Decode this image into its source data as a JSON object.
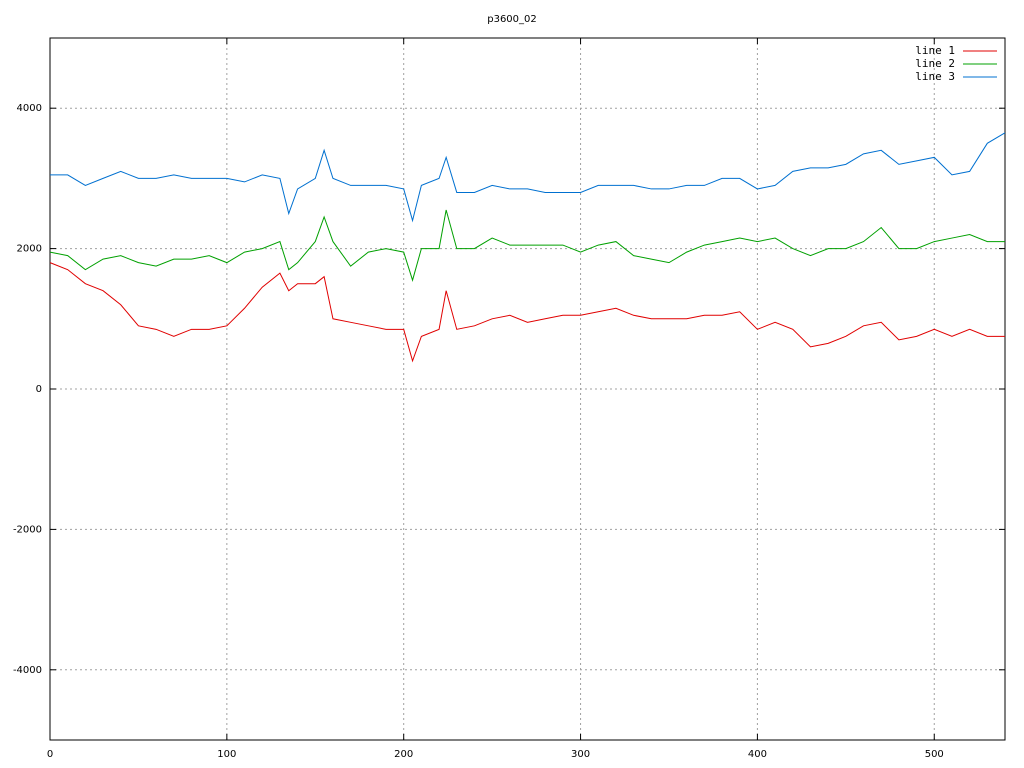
{
  "chart_data": {
    "type": "line",
    "title": "p3600_02",
    "x": [
      0,
      10,
      20,
      30,
      40,
      50,
      60,
      70,
      80,
      90,
      100,
      110,
      120,
      130,
      135,
      140,
      150,
      155,
      160,
      170,
      180,
      190,
      200,
      205,
      210,
      220,
      224,
      230,
      240,
      250,
      260,
      270,
      280,
      290,
      300,
      310,
      320,
      330,
      340,
      350,
      360,
      370,
      380,
      390,
      400,
      410,
      420,
      430,
      440,
      450,
      460,
      470,
      480,
      490,
      500,
      510,
      520,
      530,
      540
    ],
    "series": [
      {
        "name": "line 1",
        "color": "#e00000",
        "values": [
          1800,
          1700,
          1500,
          1400,
          1200,
          900,
          850,
          750,
          850,
          850,
          900,
          1150,
          1450,
          1650,
          1400,
          1500,
          1500,
          1600,
          1000,
          950,
          900,
          850,
          850,
          400,
          750,
          850,
          1400,
          850,
          900,
          1000,
          1050,
          950,
          1000,
          1050,
          1050,
          1100,
          1150,
          1050,
          1000,
          1000,
          1000,
          1050,
          1050,
          1100,
          850,
          950,
          850,
          600,
          650,
          750,
          900,
          950,
          700,
          750,
          850,
          750,
          850,
          750,
          750
        ]
      },
      {
        "name": "line 2",
        "color": "#00a000",
        "values": [
          1950,
          1900,
          1700,
          1850,
          1900,
          1800,
          1750,
          1850,
          1850,
          1900,
          1800,
          1950,
          2000,
          2100,
          1700,
          1800,
          2100,
          2450,
          2100,
          1750,
          1950,
          2000,
          1950,
          1550,
          2000,
          2000,
          2550,
          2000,
          2000,
          2150,
          2050,
          2050,
          2050,
          2050,
          1950,
          2050,
          2100,
          1900,
          1850,
          1800,
          1950,
          2050,
          2100,
          2150,
          2100,
          2150,
          2000,
          1900,
          2000,
          2000,
          2100,
          2300,
          2000,
          2000,
          2100,
          2150,
          2200,
          2100,
          2100
        ]
      },
      {
        "name": "line 3",
        "color": "#0070d0",
        "values": [
          3050,
          3050,
          2900,
          3000,
          3100,
          3000,
          3000,
          3050,
          3000,
          3000,
          3000,
          2950,
          3050,
          3000,
          2500,
          2850,
          3000,
          3400,
          3000,
          2900,
          2900,
          2900,
          2850,
          2400,
          2900,
          3000,
          3300,
          2800,
          2800,
          2900,
          2850,
          2850,
          2800,
          2800,
          2800,
          2900,
          2900,
          2900,
          2850,
          2850,
          2900,
          2900,
          3000,
          3000,
          2850,
          2900,
          3100,
          3150,
          3150,
          3200,
          3350,
          3400,
          3200,
          3250,
          3300,
          3050,
          3100,
          3500,
          3650
        ]
      }
    ],
    "xlim": [
      0,
      540
    ],
    "xticks": [
      0,
      100,
      200,
      300,
      400,
      500
    ],
    "ylim": [
      -5000,
      5000
    ],
    "yticks": [
      -4000,
      -2000,
      0,
      2000,
      4000
    ],
    "grid": true,
    "legend": "top-right"
  }
}
